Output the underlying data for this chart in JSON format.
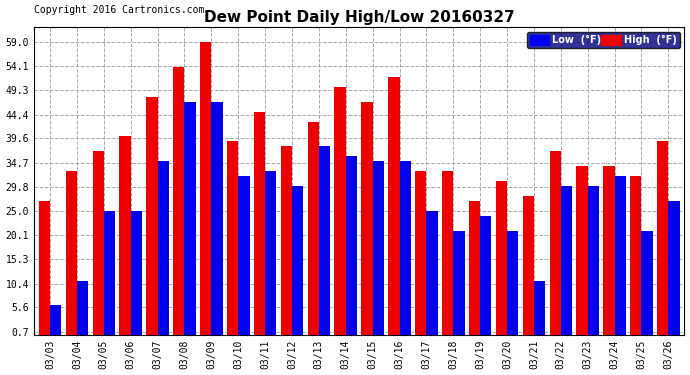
{
  "title": "Dew Point Daily High/Low 20160327",
  "copyright": "Copyright 2016 Cartronics.com",
  "dates": [
    "03/03",
    "03/04",
    "03/05",
    "03/06",
    "03/07",
    "03/08",
    "03/09",
    "03/10",
    "03/11",
    "03/12",
    "03/13",
    "03/14",
    "03/15",
    "03/16",
    "03/17",
    "03/18",
    "03/19",
    "03/20",
    "03/21",
    "03/22",
    "03/23",
    "03/24",
    "03/25",
    "03/26"
  ],
  "low_values": [
    6,
    11,
    25,
    25,
    35,
    47,
    47,
    32,
    33,
    30,
    38,
    36,
    35,
    35,
    25,
    21,
    24,
    21,
    11,
    30,
    30,
    32,
    21,
    27
  ],
  "high_values": [
    27,
    33,
    37,
    40,
    48,
    54,
    59,
    39,
    45,
    38,
    43,
    50,
    47,
    52,
    33,
    33,
    27,
    31,
    28,
    37,
    34,
    34,
    32,
    39
  ],
  "low_color": "#0000ee",
  "high_color": "#ee0000",
  "bg_color": "#ffffff",
  "plot_bg_color": "#ffffff",
  "grid_color": "#aaaaaa",
  "yticks": [
    0.7,
    5.6,
    10.4,
    15.3,
    20.1,
    25.0,
    29.8,
    34.7,
    39.6,
    44.4,
    49.3,
    54.1,
    59.0
  ],
  "title_fontsize": 11,
  "tick_fontsize": 7,
  "copyright_fontsize": 7,
  "legend_low_label": "Low  (°F)",
  "legend_high_label": "High  (°F)"
}
